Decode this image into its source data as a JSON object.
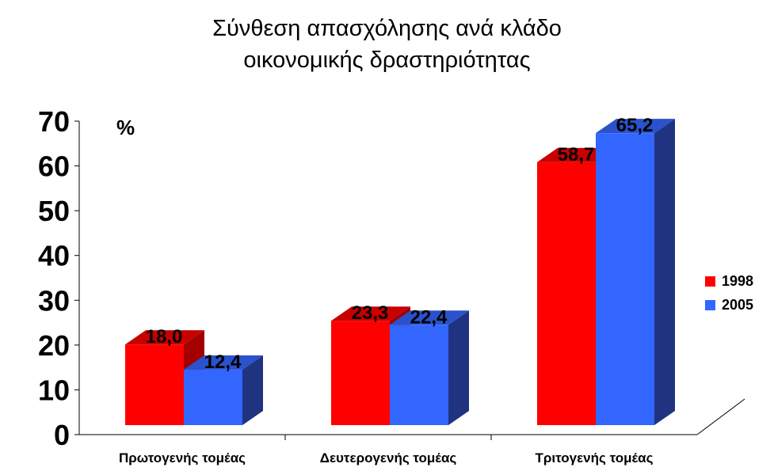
{
  "chart_data": {
    "type": "bar",
    "title": "Σύνθεση απασχόλησης ανά κλάδο\nοικονομικής δραστηριότητας",
    "title_lines": [
      "Σύνθεση απασχόλησης ανά κλάδο",
      "οικονομικής δραστηριότητας"
    ],
    "ylabel": "%",
    "xlabel": "",
    "ylim": [
      0,
      70
    ],
    "yticks": [
      0,
      10,
      20,
      30,
      40,
      50,
      60,
      70
    ],
    "categories": [
      "Πρωτογενής τομέας",
      "Δευτερογενής τομέας",
      "Τριτογενής τομέας"
    ],
    "series": [
      {
        "name": "1998",
        "values": [
          18.0,
          23.3,
          58.7
        ],
        "labels": [
          "18,0",
          "23,3",
          "58,7"
        ],
        "color": "#ff0000",
        "side_color": "#a30000",
        "top_color": "#c80000"
      },
      {
        "name": "2005",
        "values": [
          12.4,
          22.4,
          65.2
        ],
        "labels": [
          "12,4",
          "22,4",
          "65,2"
        ],
        "color": "#3366ff",
        "side_color": "#1f3380",
        "top_color": "#2a52cc"
      }
    ],
    "legend_position": "right",
    "grid": false
  }
}
